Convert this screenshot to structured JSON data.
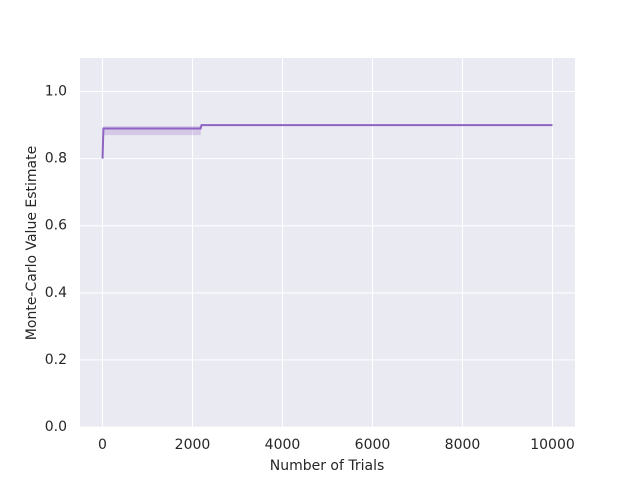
{
  "chart_data": {
    "type": "line",
    "xlabel": "Number of Trials",
    "ylabel": "Monte-Carlo Value Estimate",
    "x": [
      1,
      20,
      2180,
      2200,
      10000
    ],
    "series": [
      {
        "color": "#8e63c2",
        "values": [
          0.8,
          0.89,
          0.89,
          0.9,
          0.9
        ],
        "lower": [
          0.8,
          0.87,
          0.87,
          0.9,
          0.9
        ],
        "upper": [
          0.8,
          0.897,
          0.897,
          0.9,
          0.9
        ]
      }
    ],
    "xlim": [
      -500,
      10500
    ],
    "xticks": [
      0,
      2000,
      4000,
      6000,
      8000,
      10000
    ],
    "ylim": [
      0,
      1.1
    ],
    "yticks": [
      {
        "value": 0,
        "label": "0.0"
      },
      0.2,
      0.4,
      0.6,
      0.8,
      {
        "value": 1,
        "label": "1.0"
      }
    ],
    "grid": true
  }
}
